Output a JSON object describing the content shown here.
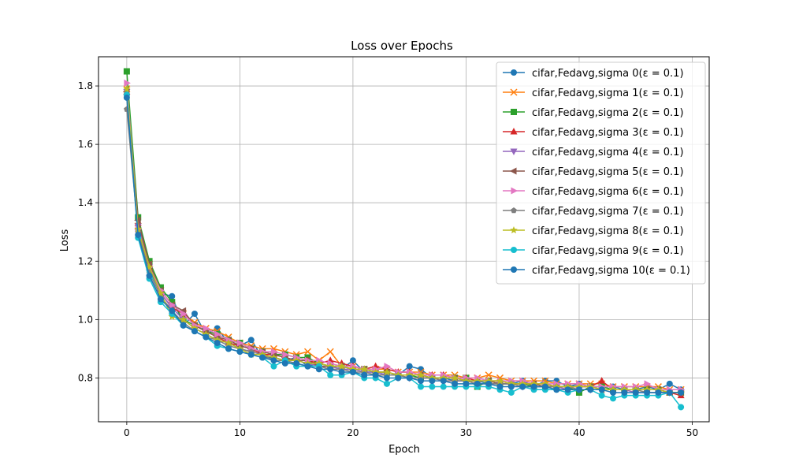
{
  "chart_data": {
    "type": "line",
    "title": "Loss over Epochs",
    "xlabel": "Epoch",
    "ylabel": "Loss",
    "xlim": [
      -2.5,
      51.5
    ],
    "ylim": [
      0.65,
      1.9
    ],
    "xticks": [
      0,
      10,
      20,
      30,
      40,
      50
    ],
    "yticks": [
      0.8,
      1.0,
      1.2,
      1.4,
      1.6,
      1.8
    ],
    "grid": true,
    "legend_position": "top-right",
    "series": [
      {
        "name": "cifar,Fedavg,sigma 0(ε = 0.1)",
        "color": "#1f77b4",
        "marker": "circle",
        "values": [
          1.77,
          1.31,
          1.17,
          1.09,
          1.08,
          0.98,
          1.02,
          0.95,
          0.97,
          0.92,
          0.91,
          0.93,
          0.87,
          0.87,
          0.86,
          0.87,
          0.84,
          0.85,
          0.84,
          0.83,
          0.86,
          0.82,
          0.82,
          0.81,
          0.81,
          0.84,
          0.83,
          0.8,
          0.8,
          0.79,
          0.79,
          0.79,
          0.78,
          0.78,
          0.78,
          0.79,
          0.77,
          0.79,
          0.79,
          0.77,
          0.78,
          0.77,
          0.77,
          0.77,
          0.76,
          0.76,
          0.77,
          0.76,
          0.78,
          0.76
        ]
      },
      {
        "name": "cifar,Fedavg,sigma 1(ε = 0.1)",
        "color": "#ff7f0e",
        "marker": "x",
        "values": [
          1.79,
          1.32,
          1.19,
          1.1,
          1.05,
          1.02,
          0.99,
          0.97,
          0.96,
          0.94,
          0.92,
          0.91,
          0.9,
          0.9,
          0.89,
          0.88,
          0.89,
          0.86,
          0.89,
          0.84,
          0.84,
          0.83,
          0.83,
          0.83,
          0.82,
          0.82,
          0.82,
          0.81,
          0.81,
          0.81,
          0.8,
          0.8,
          0.81,
          0.8,
          0.79,
          0.79,
          0.79,
          0.79,
          0.78,
          0.78,
          0.78,
          0.78,
          0.78,
          0.77,
          0.77,
          0.77,
          0.77,
          0.77,
          0.76,
          0.76
        ]
      },
      {
        "name": "cifar,Fedavg,sigma 2(ε = 0.1)",
        "color": "#2ca02c",
        "marker": "square",
        "values": [
          1.85,
          1.35,
          1.2,
          1.11,
          1.06,
          1.0,
          0.98,
          0.96,
          0.95,
          0.93,
          0.92,
          0.9,
          0.89,
          0.88,
          0.88,
          0.87,
          0.87,
          0.85,
          0.84,
          0.84,
          0.83,
          0.83,
          0.82,
          0.82,
          0.81,
          0.81,
          0.8,
          0.8,
          0.8,
          0.8,
          0.8,
          0.77,
          0.79,
          0.78,
          0.78,
          0.78,
          0.77,
          0.77,
          0.77,
          0.77,
          0.75,
          0.77,
          0.77,
          0.76,
          0.76,
          0.76,
          0.76,
          0.76,
          0.75,
          0.75
        ]
      },
      {
        "name": "cifar,Fedavg,sigma 3(ε = 0.1)",
        "color": "#d62728",
        "marker": "triangle-up",
        "values": [
          1.78,
          1.33,
          1.18,
          1.09,
          1.04,
          1.02,
          0.98,
          0.96,
          0.94,
          0.92,
          0.91,
          0.9,
          0.88,
          0.88,
          0.87,
          0.86,
          0.86,
          0.85,
          0.86,
          0.85,
          0.84,
          0.83,
          0.84,
          0.83,
          0.82,
          0.82,
          0.81,
          0.81,
          0.81,
          0.8,
          0.8,
          0.79,
          0.79,
          0.79,
          0.78,
          0.78,
          0.78,
          0.78,
          0.77,
          0.77,
          0.77,
          0.77,
          0.79,
          0.76,
          0.76,
          0.76,
          0.76,
          0.76,
          0.75,
          0.74
        ]
      },
      {
        "name": "cifar,Fedavg,sigma 4(ε = 0.1)",
        "color": "#9467bd",
        "marker": "triangle-down",
        "values": [
          1.78,
          1.32,
          1.18,
          1.09,
          1.04,
          1.0,
          0.97,
          0.95,
          0.93,
          0.92,
          0.9,
          0.89,
          0.88,
          0.87,
          0.86,
          0.86,
          0.85,
          0.84,
          0.84,
          0.83,
          0.83,
          0.82,
          0.82,
          0.81,
          0.81,
          0.8,
          0.8,
          0.8,
          0.79,
          0.79,
          0.79,
          0.78,
          0.78,
          0.78,
          0.78,
          0.77,
          0.77,
          0.77,
          0.77,
          0.76,
          0.76,
          0.76,
          0.76,
          0.76,
          0.76,
          0.75,
          0.75,
          0.75,
          0.75,
          0.75
        ]
      },
      {
        "name": "cifar,Fedavg,sigma 5(ε = 0.1)",
        "color": "#8c564b",
        "marker": "triangle-left",
        "values": [
          1.78,
          1.34,
          1.19,
          1.1,
          1.05,
          1.03,
          0.98,
          0.96,
          0.94,
          0.93,
          0.91,
          0.9,
          0.89,
          0.88,
          0.87,
          0.86,
          0.86,
          0.84,
          0.84,
          0.84,
          0.83,
          0.83,
          0.82,
          0.82,
          0.81,
          0.81,
          0.81,
          0.8,
          0.8,
          0.8,
          0.79,
          0.79,
          0.79,
          0.78,
          0.78,
          0.78,
          0.78,
          0.77,
          0.77,
          0.77,
          0.77,
          0.77,
          0.76,
          0.76,
          0.76,
          0.76,
          0.76,
          0.76,
          0.75,
          0.75
        ]
      },
      {
        "name": "cifar,Fedavg,sigma 6(ε = 0.1)",
        "color": "#e377c2",
        "marker": "triangle-right",
        "values": [
          1.81,
          1.31,
          1.18,
          1.1,
          1.05,
          1.02,
          0.98,
          0.97,
          0.95,
          0.93,
          0.92,
          0.9,
          0.89,
          0.89,
          0.88,
          0.87,
          0.86,
          0.86,
          0.85,
          0.84,
          0.84,
          0.83,
          0.83,
          0.84,
          0.82,
          0.82,
          0.81,
          0.81,
          0.81,
          0.8,
          0.8,
          0.8,
          0.79,
          0.79,
          0.79,
          0.79,
          0.78,
          0.78,
          0.78,
          0.78,
          0.78,
          0.77,
          0.77,
          0.77,
          0.77,
          0.77,
          0.78,
          0.76,
          0.76,
          0.76
        ]
      },
      {
        "name": "cifar,Fedavg,sigma 7(ε = 0.1)",
        "color": "#7f7f7f",
        "marker": "pentagon",
        "values": [
          1.72,
          1.3,
          1.16,
          1.08,
          1.03,
          0.99,
          0.96,
          0.94,
          0.93,
          0.91,
          0.9,
          0.89,
          0.88,
          0.86,
          0.86,
          0.85,
          0.84,
          0.84,
          0.83,
          0.83,
          0.82,
          0.82,
          0.81,
          0.81,
          0.81,
          0.8,
          0.8,
          0.8,
          0.79,
          0.79,
          0.79,
          0.78,
          0.78,
          0.78,
          0.78,
          0.77,
          0.77,
          0.77,
          0.77,
          0.77,
          0.76,
          0.76,
          0.76,
          0.76,
          0.76,
          0.76,
          0.75,
          0.75,
          0.75,
          0.75
        ]
      },
      {
        "name": "cifar,Fedavg,sigma 8(ε = 0.1)",
        "color": "#bcbd22",
        "marker": "star",
        "values": [
          1.79,
          1.31,
          1.18,
          1.09,
          1.01,
          1.0,
          0.97,
          0.95,
          0.93,
          0.92,
          0.9,
          0.88,
          0.88,
          0.87,
          0.86,
          0.86,
          0.85,
          0.85,
          0.84,
          0.84,
          0.83,
          0.83,
          0.82,
          0.82,
          0.81,
          0.81,
          0.81,
          0.8,
          0.8,
          0.8,
          0.79,
          0.79,
          0.79,
          0.79,
          0.78,
          0.78,
          0.78,
          0.78,
          0.77,
          0.77,
          0.77,
          0.77,
          0.76,
          0.76,
          0.76,
          0.76,
          0.76,
          0.76,
          0.75,
          0.75
        ]
      },
      {
        "name": "cifar,Fedavg,sigma 9(ε = 0.1)",
        "color": "#17becf",
        "marker": "circle",
        "values": [
          1.77,
          1.28,
          1.14,
          1.06,
          1.02,
          0.98,
          0.96,
          0.94,
          0.91,
          0.9,
          0.89,
          0.88,
          0.87,
          0.84,
          0.86,
          0.84,
          0.84,
          0.84,
          0.81,
          0.81,
          0.82,
          0.8,
          0.8,
          0.78,
          0.8,
          0.8,
          0.77,
          0.77,
          0.77,
          0.77,
          0.77,
          0.77,
          0.77,
          0.76,
          0.75,
          0.77,
          0.76,
          0.76,
          0.76,
          0.75,
          0.76,
          0.76,
          0.74,
          0.73,
          0.74,
          0.74,
          0.74,
          0.74,
          0.75,
          0.7
        ]
      },
      {
        "name": "cifar,Fedavg,sigma 10(ε = 0.1)",
        "color": "#1f77b4",
        "marker": "circle",
        "values": [
          1.76,
          1.29,
          1.15,
          1.07,
          1.03,
          0.98,
          0.96,
          0.94,
          0.92,
          0.9,
          0.89,
          0.88,
          0.87,
          0.86,
          0.85,
          0.85,
          0.84,
          0.83,
          0.83,
          0.82,
          0.82,
          0.81,
          0.81,
          0.8,
          0.8,
          0.8,
          0.79,
          0.79,
          0.79,
          0.78,
          0.78,
          0.78,
          0.78,
          0.77,
          0.77,
          0.77,
          0.77,
          0.77,
          0.76,
          0.76,
          0.76,
          0.76,
          0.76,
          0.75,
          0.75,
          0.75,
          0.75,
          0.75,
          0.75,
          0.75
        ]
      }
    ]
  }
}
